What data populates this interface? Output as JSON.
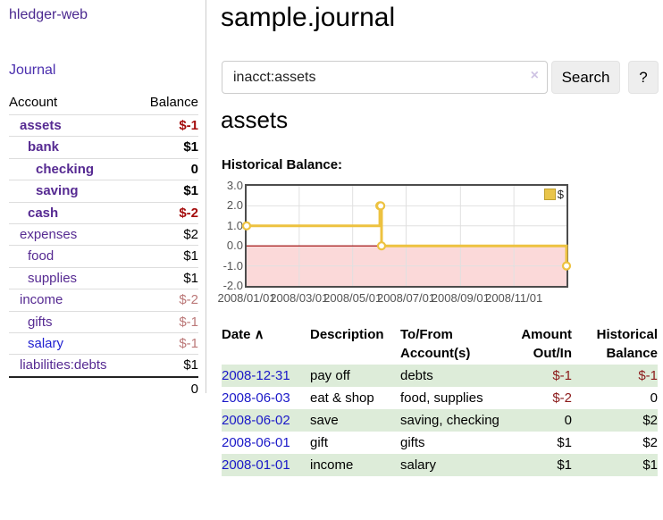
{
  "sidebar": {
    "brand": "hledger-web",
    "journal_label": "Journal",
    "accounts_table": {
      "headers": [
        "Account",
        "Balance"
      ],
      "rows": [
        {
          "name": "assets",
          "indent": 1,
          "bold": true,
          "balance": "$-1",
          "balance_class": "neg-strong"
        },
        {
          "name": "bank",
          "indent": 2,
          "bold": true,
          "balance": "$1",
          "balance_class": ""
        },
        {
          "name": "checking",
          "indent": 3,
          "bold": true,
          "balance": "0",
          "balance_class": ""
        },
        {
          "name": "saving",
          "indent": 3,
          "bold": true,
          "balance": "$1",
          "balance_class": ""
        },
        {
          "name": "cash",
          "indent": 2,
          "bold": true,
          "balance": "$-2",
          "balance_class": "neg-strong"
        },
        {
          "name": "expenses",
          "indent": 1,
          "bold": false,
          "balance": "$2",
          "balance_class": ""
        },
        {
          "name": "food",
          "indent": 2,
          "bold": false,
          "balance": "$1",
          "balance_class": ""
        },
        {
          "name": "supplies",
          "indent": 2,
          "bold": false,
          "balance": "$1",
          "balance_class": ""
        },
        {
          "name": "income",
          "indent": 1,
          "bold": false,
          "balance": "$-2",
          "balance_class": "neg-soft"
        },
        {
          "name": "gifts",
          "indent": 2,
          "bold": false,
          "balance": "$-1",
          "balance_class": "neg-soft"
        },
        {
          "name": "salary",
          "indent": 2,
          "bold": false,
          "balance": "$-1",
          "balance_class": "neg-soft",
          "link_color": "blue"
        },
        {
          "name": "liabilities:debts",
          "indent": 1,
          "bold": false,
          "balance": "$1",
          "balance_class": ""
        }
      ],
      "total": "0"
    }
  },
  "header": {
    "title": "sample.journal"
  },
  "search": {
    "value": "inacct:assets",
    "clear_icon": "×",
    "button_label": "Search",
    "help_label": "?"
  },
  "register": {
    "account_title": "assets",
    "chart_label": "Historical Balance:"
  },
  "chart_data": {
    "type": "line",
    "title": "Historical Balance",
    "series_label": "$",
    "line_color": "#EDC240",
    "negative_region_color": "#fbd9d9",
    "zero_line_color": "#990000",
    "grid_color": "#e0e0e0",
    "legend_position": "top-right",
    "ylim": [
      -2,
      3
    ],
    "x_start": "2008-01-01",
    "x_end": "2008-12-31",
    "y_ticks": [
      "3.0",
      "2.0",
      "1.0",
      "0.0",
      "-1.0",
      "-2.0"
    ],
    "y_tick_values": [
      3,
      2,
      1,
      0,
      -1,
      -2
    ],
    "x_ticks": [
      "2008/01/01",
      "2008/03/01",
      "2008/05/01",
      "2008/07/01",
      "2008/09/01",
      "2008/11/01"
    ],
    "x_tick_dates": [
      "2008-01-01",
      "2008-03-01",
      "2008-05-01",
      "2008-07-01",
      "2008-09-01",
      "2008-11-01"
    ],
    "series": [
      {
        "name": "$",
        "step": true,
        "points": [
          {
            "date": "2008-01-01",
            "value": 1
          },
          {
            "date": "2008-06-01",
            "value": 2
          },
          {
            "date": "2008-06-02",
            "value": 2
          },
          {
            "date": "2008-06-03",
            "value": 0
          },
          {
            "date": "2008-12-31",
            "value": -1
          }
        ]
      }
    ]
  },
  "transactions": {
    "headers": [
      {
        "label": "Date",
        "sort_icon": "∧",
        "align": "left"
      },
      {
        "label": "Description",
        "align": "left"
      },
      {
        "label": "To/From Account(s)",
        "align": "left"
      },
      {
        "label": "Amount Out/In",
        "align": "right"
      },
      {
        "label": "Historical Balance",
        "align": "right"
      }
    ],
    "rows": [
      {
        "date": "2008-12-31",
        "description": "pay off",
        "accounts": "debts",
        "amount": "$-1",
        "amount_neg": true,
        "balance": "$-1",
        "balance_neg": true
      },
      {
        "date": "2008-06-03",
        "description": "eat & shop",
        "accounts": "food, supplies",
        "amount": "$-2",
        "amount_neg": true,
        "balance": "0",
        "balance_neg": false
      },
      {
        "date": "2008-06-02",
        "description": "save",
        "accounts": "saving, checking",
        "amount": "0",
        "amount_neg": false,
        "balance": "$2",
        "balance_neg": false
      },
      {
        "date": "2008-06-01",
        "description": "gift",
        "accounts": "gifts",
        "amount": "$1",
        "amount_neg": false,
        "balance": "$2",
        "balance_neg": false
      },
      {
        "date": "2008-01-01",
        "description": "income",
        "accounts": "salary",
        "amount": "$1",
        "amount_neg": false,
        "balance": "$1",
        "balance_neg": false
      }
    ]
  }
}
